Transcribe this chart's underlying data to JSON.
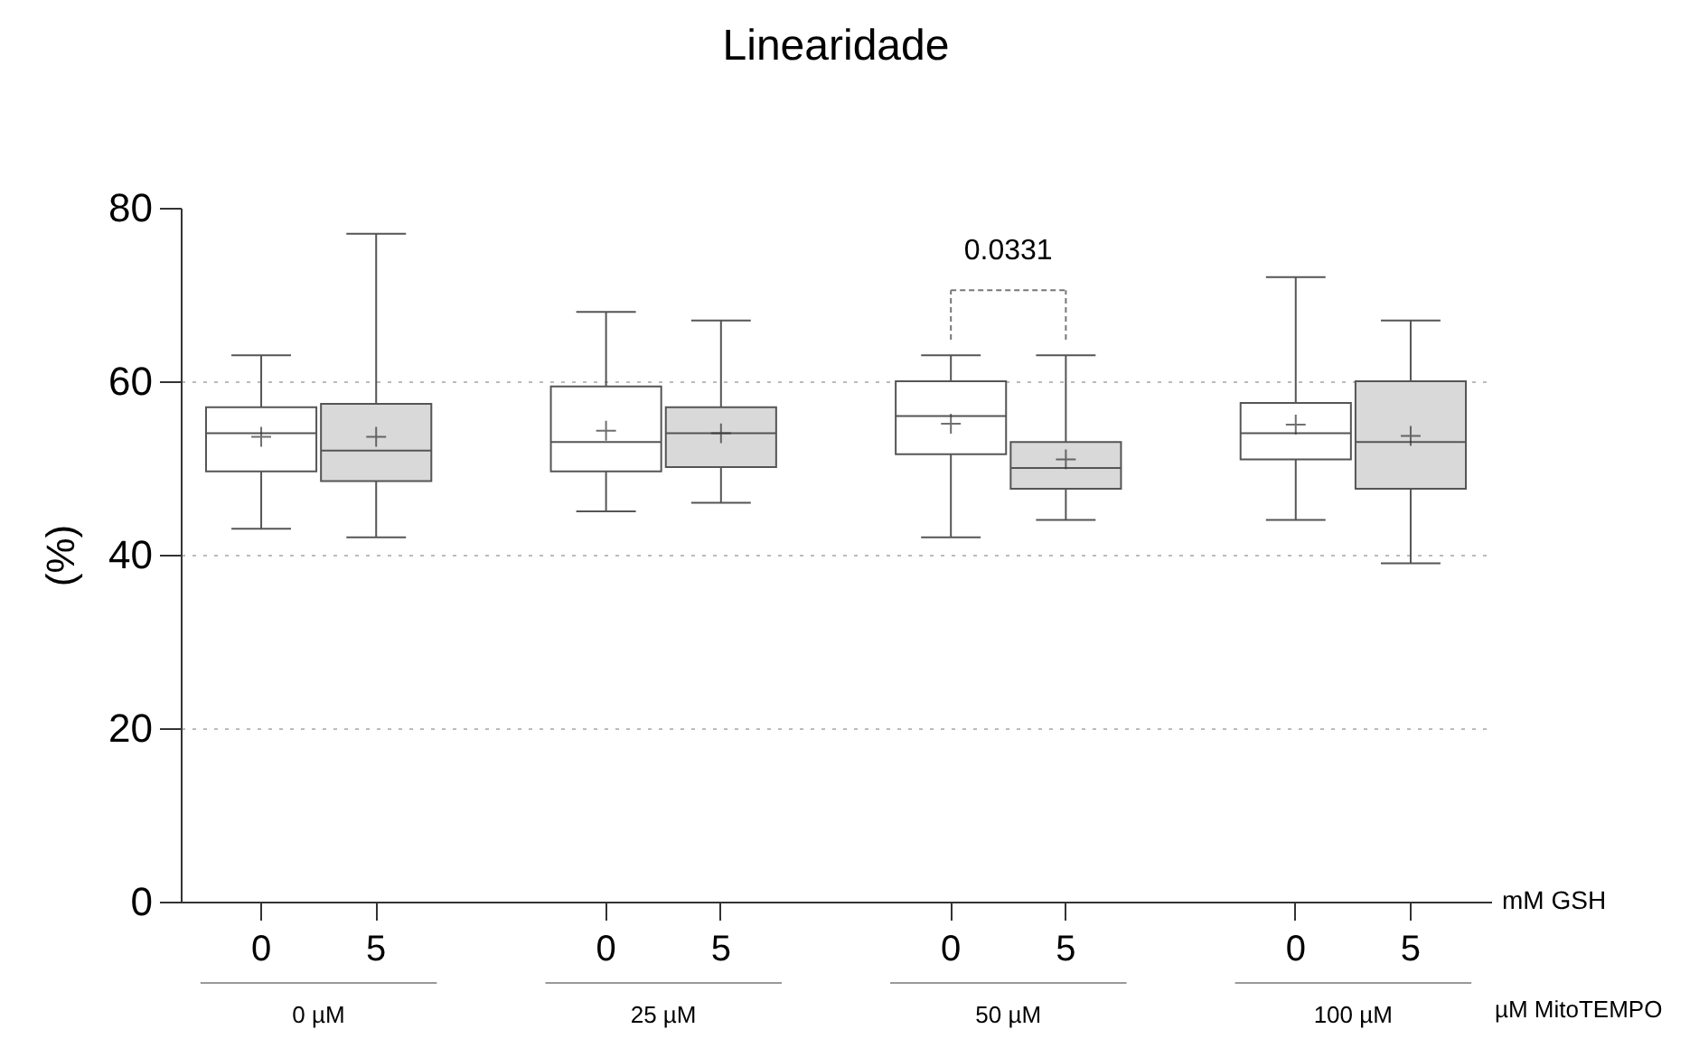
{
  "chart_data": {
    "type": "box",
    "title": "Linearidade",
    "xlabel": "mM GSH",
    "ylabel": "(%)",
    "categories": [
      "0",
      "5",
      "0",
      "5",
      "0",
      "5",
      "0",
      "5"
    ],
    "series": [
      {
        "color": "#ffffff",
        "boxes": [
          {
            "low": 43,
            "q1": 49.6,
            "median": 54,
            "q3": 57,
            "high": 63,
            "mean": 53.6
          },
          null,
          {
            "low": 45,
            "q1": 49.6,
            "median": 53,
            "q3": 59.4,
            "high": 68,
            "mean": 54.3
          },
          null,
          {
            "low": 42,
            "q1": 51.6,
            "median": 56,
            "q3": 60,
            "high": 63,
            "mean": 55.1
          },
          null,
          {
            "low": 44,
            "q1": 51,
            "median": 54,
            "q3": 57.5,
            "high": 72,
            "mean": 55
          },
          null
        ]
      },
      {
        "color": "#d9d9d9",
        "boxes": [
          null,
          {
            "low": 42,
            "q1": 48.5,
            "median": 52,
            "q3": 57.4,
            "high": 77,
            "mean": 53.6
          },
          null,
          {
            "low": 46,
            "q1": 50.1,
            "median": 54,
            "q3": 57,
            "high": 67,
            "mean": 54
          },
          null,
          {
            "low": 44,
            "q1": 47.6,
            "median": 50,
            "q3": 53,
            "high": 63,
            "mean": 51
          },
          null,
          {
            "low": 39,
            "q1": 47.6,
            "median": 53,
            "q3": 60,
            "high": 67,
            "mean": 53.7
          }
        ]
      }
    ],
    "ylim": [
      0,
      80
    ],
    "yticks": [
      0,
      20,
      40,
      60,
      80
    ],
    "grid": "y",
    "marker": "cross",
    "annotations": [
      "0.0331",
      "0 µM",
      "25 µM",
      "50 µM",
      "100 µM",
      "µM MitoTEMPO"
    ]
  }
}
